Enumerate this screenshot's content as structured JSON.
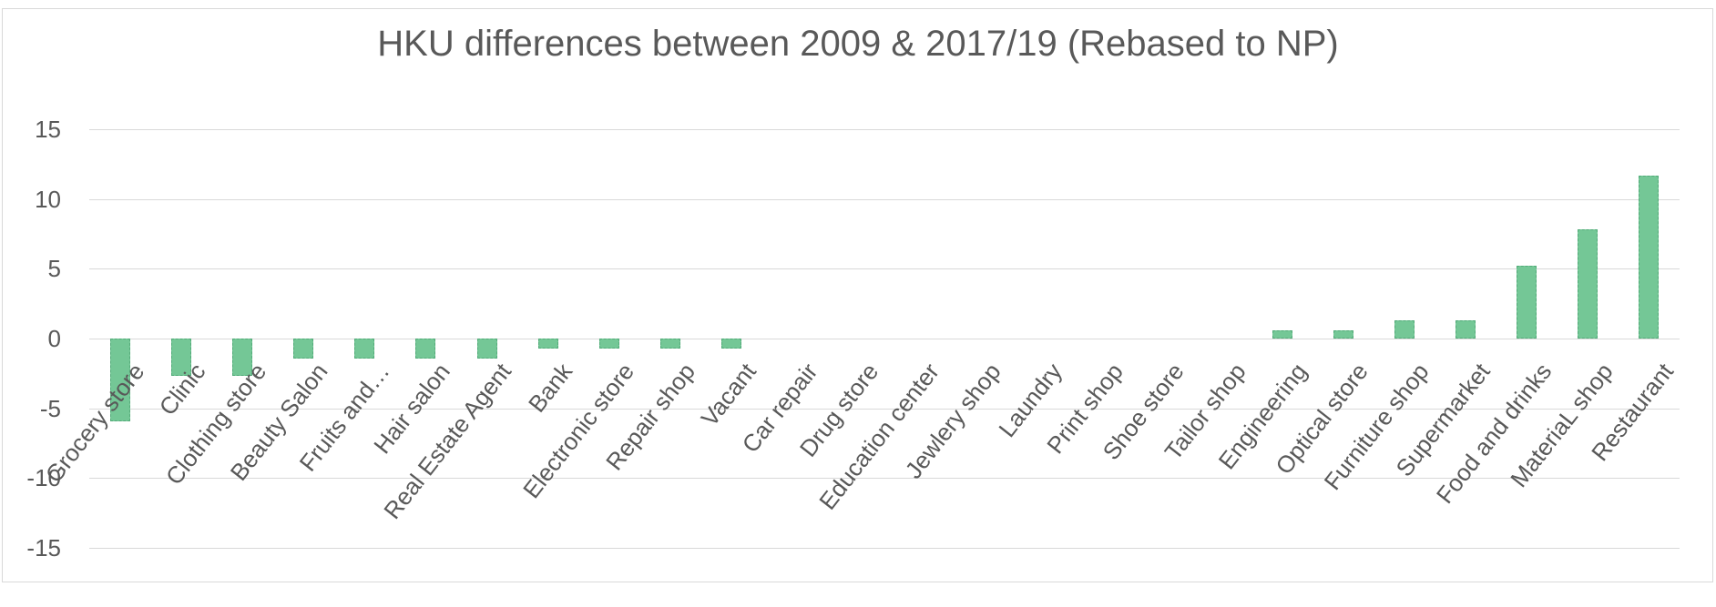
{
  "chart_data": {
    "type": "bar",
    "title": "HKU differences between 2009 & 2017/19 (Rebased to NP)",
    "categories": [
      "Grocery store",
      "Clinic",
      "Clothing store",
      "Beauty Salon",
      "Fruits and…",
      "Hair salon",
      "Real Estate Agent",
      "Bank",
      "Electronic store",
      "Repair shop",
      "Vacant",
      "Car repair",
      "Drug store",
      "Education center",
      "Jewlery shop",
      "Laundry",
      "Print shop",
      "Shoe store",
      "Tailor shop",
      "Engineering",
      "Optical store",
      "Furniture shop",
      "Supermarket",
      "Food and drinks",
      "MateriaL shop",
      "Restaurant"
    ],
    "values": [
      -5.9,
      -2.7,
      -2.7,
      -1.4,
      -1.4,
      -1.4,
      -1.4,
      -0.7,
      -0.7,
      -0.7,
      -0.7,
      0,
      0,
      0,
      0,
      0,
      0,
      0,
      0,
      0.6,
      0.6,
      1.3,
      1.3,
      5.2,
      7.8,
      11.7
    ],
    "xlabel": "",
    "ylabel": "",
    "ylim": [
      -15,
      15
    ],
    "yticks": [
      15,
      10,
      5,
      0,
      -5,
      -10,
      -15
    ],
    "grid": true,
    "legend_position": "none",
    "bar_color": "#74c796",
    "bar_border_color": "#53ab79",
    "gridline_color": "#d9d9d9",
    "frame_color": "#d9d9d9",
    "text_color": "#595959"
  }
}
